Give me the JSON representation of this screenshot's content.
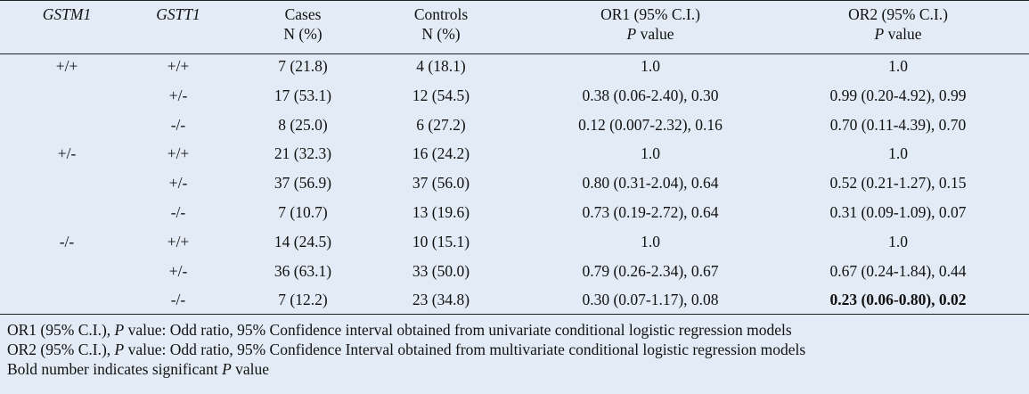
{
  "header": {
    "columns": [
      {
        "text": "GSTM1",
        "italic": true
      },
      {
        "text": "GSTT1",
        "italic": true
      },
      {
        "text": "Cases",
        "sub": "N (%)"
      },
      {
        "text": "Controls",
        "sub": "N (%)"
      },
      {
        "text": "OR1 (95% C.I.)",
        "sub_p": "P",
        "sub": "value"
      },
      {
        "text": "OR2 (95% C.I.)",
        "sub_p": "P",
        "sub": "value"
      }
    ]
  },
  "groups": [
    {
      "gstm1": "+/+",
      "rows": [
        [
          "+/+",
          "7 (21.8)",
          "4 (18.1)",
          "1.0",
          "1.0"
        ],
        [
          "+/-",
          "17 (53.1)",
          "12 (54.5)",
          "0.38 (0.06-2.40), 0.30",
          "0.99 (0.20-4.92), 0.99"
        ],
        [
          "-/-",
          "8 (25.0)",
          "6 (27.2)",
          "0.12 (0.007-2.32), 0.16",
          "0.70 (0.11-4.39), 0.70"
        ]
      ]
    },
    {
      "gstm1": "+/-",
      "rows": [
        [
          "+/+",
          "21 (32.3)",
          "16 (24.2)",
          "1.0",
          "1.0"
        ],
        [
          "+/-",
          "37 (56.9)",
          "37 (56.0)",
          "0.80 (0.31-2.04), 0.64",
          "0.52 (0.21-1.27), 0.15"
        ],
        [
          "-/-",
          "7 (10.7)",
          "13 (19.6)",
          "0.73 (0.19-2.72), 0.64",
          "0.31 (0.09-1.09), 0.07"
        ]
      ]
    },
    {
      "gstm1": "-/-",
      "rows": [
        [
          "+/+",
          "14 (24.5)",
          "10 (15.1)",
          "1.0",
          "1.0"
        ],
        [
          "+/-",
          "36 (63.1)",
          "33 (50.0)",
          "0.79 (0.26-2.34), 0.67",
          "0.67 (0.24-1.84), 0.44"
        ],
        [
          "-/-",
          "7 (12.2)",
          "23 (34.8)",
          "0.30 (0.07-1.17), 0.08",
          {
            "text": "0.23 (0.06-0.80), 0.02",
            "bold": true
          }
        ]
      ]
    }
  ],
  "footnotes": [
    {
      "lead": "OR1 (95% C.I.),",
      "p": "P",
      "rest": "value: Odd ratio, 95% Confidence interval obtained from univariate conditional logistic regression models"
    },
    {
      "lead": "OR2 (95% C.I.),",
      "p": "P",
      "rest": "value: Odd ratio, 95% Confidence Interval obtained from multivariate conditional logistic regression models"
    },
    {
      "lead": "Bold number indicates significant",
      "p": "P",
      "rest": "value"
    }
  ]
}
